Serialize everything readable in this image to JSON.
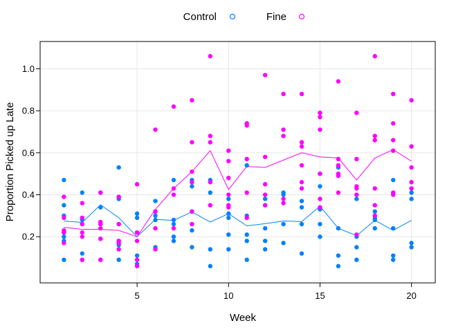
{
  "chart_data": {
    "type": "scatter",
    "title": "",
    "xlabel": "Week",
    "ylabel": "Proportion Picked up Late",
    "xlim": [
      -0.3,
      21.3
    ],
    "ylim": [
      -0.02,
      1.13
    ],
    "x_ticks": [
      5,
      10,
      15,
      20
    ],
    "y_ticks": [
      0.2,
      0.4,
      0.6,
      0.8,
      1.0
    ],
    "x_tick_labels": [
      "5",
      "10",
      "15",
      "20"
    ],
    "y_tick_labels": [
      "0.2",
      "0.4",
      "0.6",
      "0.8",
      "1.0"
    ],
    "grid": true,
    "legend_position": "top",
    "series": [
      {
        "name": "Control",
        "color": "#0080ff",
        "points": [
          [
            1,
            0.47
          ],
          [
            1,
            0.35
          ],
          [
            1,
            0.3
          ],
          [
            1,
            0.22
          ],
          [
            1,
            0.2
          ],
          [
            1,
            0.18
          ],
          [
            1,
            0.09
          ],
          [
            2,
            0.41
          ],
          [
            2,
            0.29
          ],
          [
            2,
            0.28
          ],
          [
            2,
            0.26
          ],
          [
            2,
            0.12
          ],
          [
            2,
            0.09
          ],
          [
            3,
            0.41
          ],
          [
            3,
            0.34
          ],
          [
            3,
            0.26
          ],
          [
            3,
            0.19
          ],
          [
            3,
            0.09
          ],
          [
            4,
            0.53
          ],
          [
            4,
            0.38
          ],
          [
            4,
            0.26
          ],
          [
            4,
            0.18
          ],
          [
            4,
            0.16
          ],
          [
            4,
            0.09
          ],
          [
            5,
            0.31
          ],
          [
            5,
            0.29
          ],
          [
            5,
            0.22
          ],
          [
            5,
            0.11
          ],
          [
            5,
            0.07
          ],
          [
            6,
            0.37
          ],
          [
            6,
            0.32
          ],
          [
            6,
            0.3
          ],
          [
            6,
            0.28
          ],
          [
            6,
            0.15
          ],
          [
            7,
            0.47
          ],
          [
            7,
            0.28
          ],
          [
            7,
            0.26
          ],
          [
            7,
            0.2
          ],
          [
            7,
            0.18
          ],
          [
            8,
            0.47
          ],
          [
            8,
            0.44
          ],
          [
            8,
            0.32
          ],
          [
            8,
            0.26
          ],
          [
            8,
            0.23
          ],
          [
            8,
            0.15
          ],
          [
            9,
            0.47
          ],
          [
            9,
            0.41
          ],
          [
            9,
            0.35
          ],
          [
            9,
            0.14
          ],
          [
            9,
            0.06
          ],
          [
            10,
            0.38
          ],
          [
            10,
            0.31
          ],
          [
            10,
            0.29
          ],
          [
            10,
            0.21
          ],
          [
            10,
            0.14
          ],
          [
            11,
            0.54
          ],
          [
            11,
            0.3
          ],
          [
            11,
            0.21
          ],
          [
            11,
            0.18
          ],
          [
            11,
            0.09
          ],
          [
            12,
            0.38
          ],
          [
            12,
            0.35
          ],
          [
            12,
            0.24
          ],
          [
            12,
            0.18
          ],
          [
            12,
            0.14
          ],
          [
            13,
            0.41
          ],
          [
            13,
            0.4
          ],
          [
            13,
            0.26
          ],
          [
            13,
            0.17
          ],
          [
            14,
            0.37
          ],
          [
            14,
            0.34
          ],
          [
            14,
            0.26
          ],
          [
            14,
            0.12
          ],
          [
            15,
            0.5
          ],
          [
            15,
            0.44
          ],
          [
            15,
            0.33
          ],
          [
            15,
            0.26
          ],
          [
            15,
            0.2
          ],
          [
            16,
            0.53
          ],
          [
            16,
            0.24
          ],
          [
            16,
            0.11
          ],
          [
            16,
            0.06
          ],
          [
            17,
            0.38
          ],
          [
            17,
            0.2
          ],
          [
            17,
            0.15
          ],
          [
            17,
            0.09
          ],
          [
            18,
            0.32
          ],
          [
            18,
            0.29
          ],
          [
            18,
            0.28
          ],
          [
            18,
            0.24
          ],
          [
            19,
            0.47
          ],
          [
            19,
            0.24
          ],
          [
            19,
            0.11
          ],
          [
            19,
            0.09
          ],
          [
            20,
            0.41
          ],
          [
            20,
            0.38
          ],
          [
            20,
            0.17
          ],
          [
            20,
            0.15
          ]
        ],
        "line": [
          [
            1,
            0.275
          ],
          [
            2,
            0.268
          ],
          [
            3,
            0.352
          ],
          [
            4,
            0.29
          ],
          [
            5,
            0.2
          ],
          [
            6,
            0.282
          ],
          [
            7,
            0.278
          ],
          [
            8,
            0.318
          ],
          [
            9,
            0.27
          ],
          [
            10,
            0.31
          ],
          [
            11,
            0.252
          ],
          [
            12,
            0.262
          ],
          [
            13,
            0.275
          ],
          [
            14,
            0.272
          ],
          [
            15,
            0.345
          ],
          [
            16,
            0.24
          ],
          [
            17,
            0.205
          ],
          [
            18,
            0.278
          ],
          [
            19,
            0.23
          ],
          [
            20,
            0.278
          ]
        ]
      },
      {
        "name": "Fine",
        "color": "#ff00ff",
        "points": [
          [
            1,
            0.39
          ],
          [
            1,
            0.29
          ],
          [
            1,
            0.23
          ],
          [
            1,
            0.22
          ],
          [
            1,
            0.17
          ],
          [
            2,
            0.36
          ],
          [
            2,
            0.29
          ],
          [
            2,
            0.26
          ],
          [
            2,
            0.22
          ],
          [
            2,
            0.2
          ],
          [
            2,
            0.09
          ],
          [
            3,
            0.41
          ],
          [
            3,
            0.27
          ],
          [
            3,
            0.26
          ],
          [
            3,
            0.24
          ],
          [
            3,
            0.19
          ],
          [
            3,
            0.09
          ],
          [
            4,
            0.39
          ],
          [
            4,
            0.26
          ],
          [
            4,
            0.18
          ],
          [
            4,
            0.17
          ],
          [
            4,
            0.14
          ],
          [
            5,
            0.45
          ],
          [
            5,
            0.22
          ],
          [
            5,
            0.18
          ],
          [
            5,
            0.09
          ],
          [
            5,
            0.06
          ],
          [
            6,
            0.71
          ],
          [
            6,
            0.32
          ],
          [
            6,
            0.24
          ],
          [
            6,
            0.14
          ],
          [
            7,
            0.82
          ],
          [
            7,
            0.43
          ],
          [
            7,
            0.4
          ],
          [
            7,
            0.24
          ],
          [
            8,
            0.85
          ],
          [
            8,
            0.65
          ],
          [
            8,
            0.51
          ],
          [
            8,
            0.46
          ],
          [
            8,
            0.32
          ],
          [
            8,
            0.26
          ],
          [
            9,
            1.06
          ],
          [
            9,
            0.68
          ],
          [
            9,
            0.65
          ],
          [
            9,
            0.46
          ],
          [
            9,
            0.35
          ],
          [
            10,
            0.61
          ],
          [
            10,
            0.56
          ],
          [
            10,
            0.48
          ],
          [
            10,
            0.4
          ],
          [
            10,
            0.35
          ],
          [
            10,
            0.34
          ],
          [
            11,
            0.74
          ],
          [
            11,
            0.73
          ],
          [
            11,
            0.57
          ],
          [
            11,
            0.41
          ],
          [
            11,
            0.29
          ],
          [
            12,
            0.97
          ],
          [
            12,
            0.58
          ],
          [
            12,
            0.45
          ],
          [
            12,
            0.4
          ],
          [
            12,
            0.35
          ],
          [
            13,
            0.88
          ],
          [
            13,
            0.71
          ],
          [
            13,
            0.68
          ],
          [
            13,
            0.38
          ],
          [
            13,
            0.36
          ],
          [
            14,
            0.88
          ],
          [
            14,
            0.65
          ],
          [
            14,
            0.63
          ],
          [
            14,
            0.54
          ],
          [
            14,
            0.46
          ],
          [
            14,
            0.43
          ],
          [
            15,
            0.79
          ],
          [
            15,
            0.77
          ],
          [
            15,
            0.71
          ],
          [
            15,
            0.5
          ],
          [
            15,
            0.38
          ],
          [
            15,
            0.34
          ],
          [
            16,
            0.94
          ],
          [
            16,
            0.57
          ],
          [
            16,
            0.54
          ],
          [
            16,
            0.5
          ],
          [
            16,
            0.49
          ],
          [
            16,
            0.41
          ],
          [
            17,
            0.79
          ],
          [
            17,
            0.57
          ],
          [
            17,
            0.44
          ],
          [
            17,
            0.43
          ],
          [
            17,
            0.4
          ],
          [
            17,
            0.21
          ],
          [
            18,
            1.06
          ],
          [
            18,
            0.68
          ],
          [
            18,
            0.66
          ],
          [
            18,
            0.43
          ],
          [
            18,
            0.35
          ],
          [
            18,
            0.3
          ],
          [
            19,
            0.88
          ],
          [
            19,
            0.74
          ],
          [
            19,
            0.66
          ],
          [
            19,
            0.61
          ],
          [
            19,
            0.41
          ],
          [
            19,
            0.4
          ],
          [
            20,
            0.85
          ],
          [
            20,
            0.63
          ],
          [
            20,
            0.53
          ],
          [
            20,
            0.46
          ],
          [
            20,
            0.43
          ]
        ],
        "line": [
          [
            1,
            0.245
          ],
          [
            2,
            0.235
          ],
          [
            3,
            0.235
          ],
          [
            4,
            0.23
          ],
          [
            5,
            0.2
          ],
          [
            6,
            0.33
          ],
          [
            7,
            0.43
          ],
          [
            8,
            0.51
          ],
          [
            9,
            0.61
          ],
          [
            10,
            0.425
          ],
          [
            11,
            0.535
          ],
          [
            12,
            0.53
          ],
          [
            13,
            0.565
          ],
          [
            14,
            0.6
          ],
          [
            15,
            0.58
          ],
          [
            16,
            0.575
          ],
          [
            17,
            0.47
          ],
          [
            18,
            0.575
          ],
          [
            19,
            0.615
          ],
          [
            20,
            0.56
          ]
        ]
      }
    ]
  }
}
